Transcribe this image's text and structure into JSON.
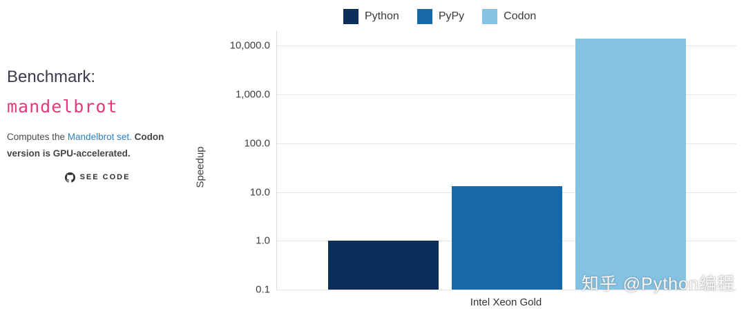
{
  "panel": {
    "heading": "Benchmark:",
    "benchmark_name": "mandelbrot",
    "description_prefix": "Computes the ",
    "description_link": "Mandelbrot set.",
    "description_bold": " Codon version is GPU-accelerated.",
    "see_code_label": "SEE CODE"
  },
  "watermark": "知乎 @Python编程",
  "colors": {
    "benchmark_name_pink": "#e8387d",
    "link_blue": "#2d7fc1",
    "gridline": "#e5e5e5"
  },
  "chart_data": {
    "type": "bar",
    "title": "",
    "xlabel": "",
    "ylabel": "Speedup",
    "y_scale": "log",
    "grid": true,
    "legend_position": "top",
    "categories": [
      "Intel Xeon Gold"
    ],
    "series": [
      {
        "name": "Python",
        "color": "#0b2e5b",
        "values": [
          1.0
        ]
      },
      {
        "name": "PyPy",
        "color": "#1668a8",
        "values": [
          13.0
        ]
      },
      {
        "name": "Codon",
        "color": "#84c3e4",
        "values": [
          14000
        ]
      }
    ],
    "ylim": [
      0.1,
      20000
    ],
    "y_ticks": [
      10000,
      1000,
      100,
      10,
      1,
      0.1
    ],
    "y_tick_labels": [
      "10,000.0",
      "1,000.0",
      "100.0",
      "10.0",
      "1.0",
      "0.1"
    ]
  }
}
